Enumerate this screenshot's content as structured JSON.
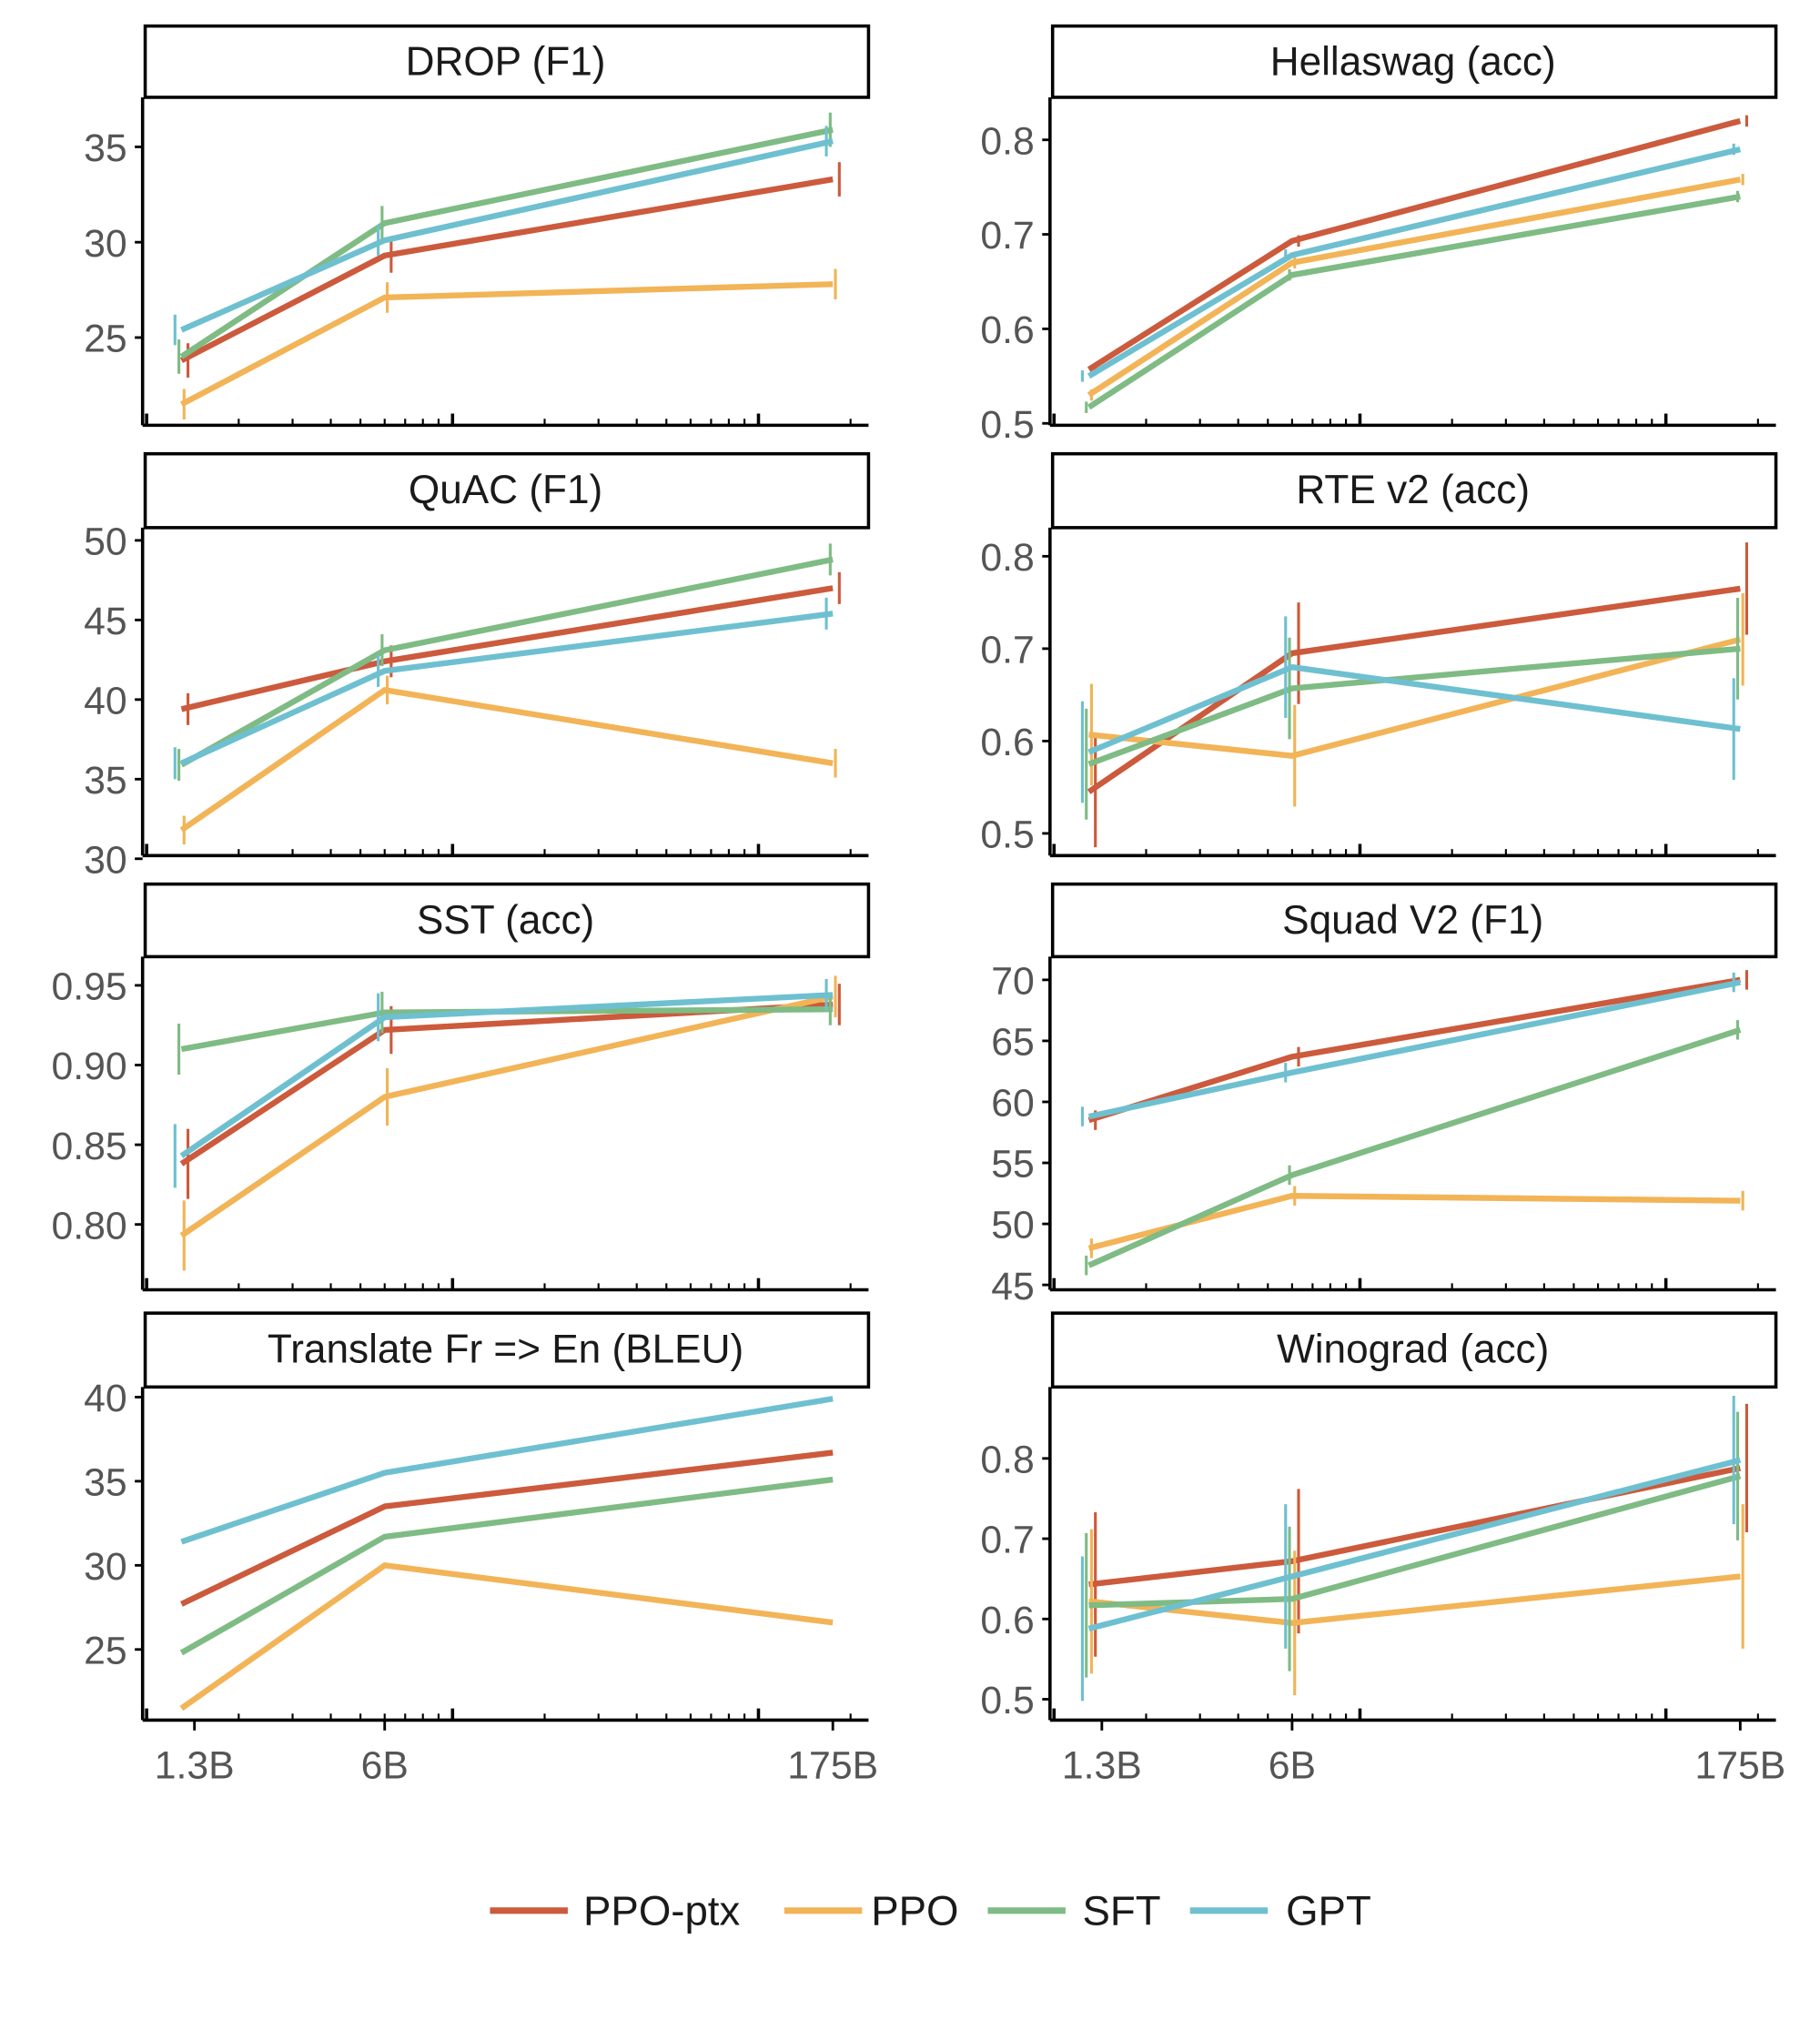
{
  "chart_data": {
    "type": "line",
    "x": [
      "1.3B",
      "6B",
      "175B"
    ],
    "x_values": [
      1300000000.0,
      6000000000.0,
      175000000000.0
    ],
    "x_scale": "log",
    "legend": {
      "placement": "bottom",
      "entries": [
        "PPO-ptx",
        "PPO",
        "SFT",
        "GPT"
      ]
    },
    "colors": {
      "PPO-ptx": "#cc5a3c",
      "PPO": "#f2b457",
      "SFT": "#7fbb84",
      "GPT": "#6ec0d0"
    },
    "grid": false,
    "panels": [
      {
        "title": "DROP (F1)",
        "ylim": [
          20.4,
          37.6
        ],
        "yticks": [
          "25",
          "30",
          "35"
        ],
        "series": [
          {
            "name": "PPO-ptx",
            "values": [
              23.8,
              29.3,
              33.3
            ],
            "err": [
              0.9,
              0.9,
              0.9
            ]
          },
          {
            "name": "PPO",
            "values": [
              21.5,
              27.1,
              27.8
            ],
            "err": [
              0.8,
              0.8,
              0.8
            ]
          },
          {
            "name": "SFT",
            "values": [
              24.0,
              31.0,
              35.9
            ],
            "err": [
              0.9,
              0.9,
              0.9
            ]
          },
          {
            "name": "GPT",
            "values": [
              25.4,
              30.1,
              35.3
            ],
            "err": [
              0.8,
              0.8,
              0.8
            ]
          }
        ]
      },
      {
        "title": "Hellaswag (acc)",
        "ylim": [
          0.498,
          0.845
        ],
        "yticks": [
          "0.5",
          "0.6",
          "0.7",
          "0.8"
        ],
        "series": [
          {
            "name": "PPO-ptx",
            "values": [
              0.557,
              0.693,
              0.82
            ],
            "err": [
              0.006,
              0.006,
              0.006
            ]
          },
          {
            "name": "PPO",
            "values": [
              0.53,
              0.67,
              0.758
            ],
            "err": [
              0.006,
              0.006,
              0.006
            ]
          },
          {
            "name": "SFT",
            "values": [
              0.517,
              0.657,
              0.74
            ],
            "err": [
              0.006,
              0.006,
              0.006
            ]
          },
          {
            "name": "GPT",
            "values": [
              0.55,
              0.678,
              0.79
            ],
            "err": [
              0.006,
              0.006,
              0.006
            ]
          }
        ]
      },
      {
        "title": "QuAC (F1)",
        "ylim": [
          30.2,
          50.8
        ],
        "yticks": [
          "30",
          "35",
          "40",
          "45",
          "50"
        ],
        "series": [
          {
            "name": "PPO-ptx",
            "values": [
              39.4,
              42.4,
              47.0
            ],
            "err": [
              1.0,
              1.0,
              1.0
            ]
          },
          {
            "name": "PPO",
            "values": [
              31.8,
              40.6,
              36.0
            ],
            "err": [
              0.9,
              0.9,
              0.9
            ]
          },
          {
            "name": "SFT",
            "values": [
              35.9,
              43.1,
              48.8
            ],
            "err": [
              1.0,
              1.0,
              1.0
            ]
          },
          {
            "name": "GPT",
            "values": [
              36.0,
              41.8,
              45.4
            ],
            "err": [
              1.0,
              1.0,
              1.0
            ]
          }
        ]
      },
      {
        "title": "RTE v2 (acc)",
        "ylim": [
          0.476,
          0.831
        ],
        "yticks": [
          "0.5",
          "0.6",
          "0.7",
          "0.8"
        ],
        "series": [
          {
            "name": "PPO-ptx",
            "values": [
              0.545,
              0.695,
              0.765
            ],
            "err": [
              0.06,
              0.055,
              0.05
            ]
          },
          {
            "name": "PPO",
            "values": [
              0.607,
              0.584,
              0.71
            ],
            "err": [
              0.055,
              0.055,
              0.05
            ]
          },
          {
            "name": "SFT",
            "values": [
              0.575,
              0.657,
              0.7
            ],
            "err": [
              0.06,
              0.055,
              0.055
            ]
          },
          {
            "name": "GPT",
            "values": [
              0.588,
              0.68,
              0.613
            ],
            "err": [
              0.055,
              0.055,
              0.055
            ]
          }
        ]
      },
      {
        "title": "SST (acc)",
        "ylim": [
          0.759,
          0.968
        ],
        "yticks": [
          "0.80",
          "0.85",
          "0.90",
          "0.95"
        ],
        "series": [
          {
            "name": "PPO-ptx",
            "values": [
              0.838,
              0.922,
              0.938
            ],
            "err": [
              0.022,
              0.015,
              0.013
            ]
          },
          {
            "name": "PPO",
            "values": [
              0.793,
              0.88,
              0.943
            ],
            "err": [
              0.022,
              0.018,
              0.013
            ]
          },
          {
            "name": "SFT",
            "values": [
              0.91,
              0.933,
              0.935
            ],
            "err": [
              0.016,
              0.013,
              0.01
            ]
          },
          {
            "name": "GPT",
            "values": [
              0.843,
              0.93,
              0.944
            ],
            "err": [
              0.02,
              0.015,
              0.01
            ]
          }
        ]
      },
      {
        "title": "Squad V2 (F1)",
        "ylim": [
          44.6,
          71.9
        ],
        "yticks": [
          "45",
          "50",
          "55",
          "60",
          "65",
          "70"
        ],
        "series": [
          {
            "name": "PPO-ptx",
            "values": [
              58.5,
              63.7,
              70.0
            ],
            "err": [
              0.8,
              0.8,
              0.8
            ]
          },
          {
            "name": "PPO",
            "values": [
              48.0,
              52.3,
              51.9
            ],
            "err": [
              0.8,
              0.8,
              0.8
            ]
          },
          {
            "name": "SFT",
            "values": [
              46.6,
              54.0,
              65.9
            ],
            "err": [
              0.8,
              0.8,
              0.8
            ]
          },
          {
            "name": "GPT",
            "values": [
              58.8,
              62.4,
              69.8
            ],
            "err": [
              0.8,
              0.8,
              0.8
            ]
          }
        ]
      },
      {
        "title": "Translate Fr => En (BLEU)",
        "ylim": [
          20.8,
          40.6
        ],
        "yticks": [
          "25",
          "30",
          "35",
          "40"
        ],
        "series": [
          {
            "name": "PPO-ptx",
            "values": [
              27.7,
              33.5,
              36.7
            ],
            "err": [
              0,
              0,
              0
            ]
          },
          {
            "name": "PPO",
            "values": [
              21.5,
              30.0,
              26.6
            ],
            "err": [
              0,
              0,
              0
            ]
          },
          {
            "name": "SFT",
            "values": [
              24.8,
              31.7,
              35.1
            ],
            "err": [
              0,
              0,
              0
            ]
          },
          {
            "name": "GPT",
            "values": [
              31.4,
              35.5,
              39.9
            ],
            "err": [
              0,
              0,
              0
            ]
          }
        ]
      },
      {
        "title": "Winograd (acc)",
        "ylim": [
          0.474,
          0.889
        ],
        "yticks": [
          "0.5",
          "0.6",
          "0.7",
          "0.8"
        ],
        "series": [
          {
            "name": "PPO-ptx",
            "values": [
              0.643,
              0.672,
              0.788
            ],
            "err": [
              0.09,
              0.09,
              0.08
            ]
          },
          {
            "name": "PPO",
            "values": [
              0.622,
              0.595,
              0.653
            ],
            "err": [
              0.09,
              0.09,
              0.09
            ]
          },
          {
            "name": "SFT",
            "values": [
              0.617,
              0.625,
              0.778
            ],
            "err": [
              0.09,
              0.09,
              0.08
            ]
          },
          {
            "name": "GPT",
            "values": [
              0.588,
              0.653,
              0.798
            ],
            "err": [
              0.09,
              0.09,
              0.08
            ]
          }
        ]
      }
    ]
  }
}
